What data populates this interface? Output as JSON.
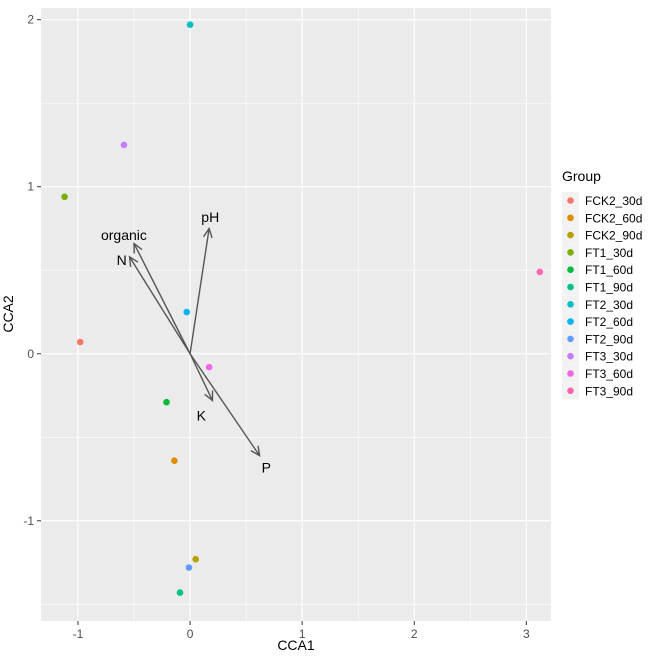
{
  "chart_data": {
    "type": "scatter",
    "title": "",
    "xlabel": "CCA1",
    "ylabel": "CCA2",
    "xlim": [
      -1.33,
      3.22
    ],
    "ylim": [
      -1.6,
      2.07
    ],
    "xticks": [
      -1,
      0,
      1,
      2,
      3
    ],
    "yticks": [
      -1,
      0,
      1,
      2
    ],
    "xtick_labels": [
      "-1",
      "0",
      "1",
      "2",
      "3"
    ],
    "ytick_labels": [
      "-1",
      "0",
      "1",
      "2"
    ],
    "grid": true,
    "legend_title": "Group",
    "legend_position": "right",
    "points": [
      {
        "group": "FCK2_30d",
        "x": -0.98,
        "y": 0.07,
        "color": "#F8766D"
      },
      {
        "group": "FCK2_60d",
        "x": -0.14,
        "y": -0.64,
        "color": "#DE8C00"
      },
      {
        "group": "FCK2_90d",
        "x": 0.05,
        "y": -1.23,
        "color": "#B79F00"
      },
      {
        "group": "FT1_30d",
        "x": -1.12,
        "y": 0.94,
        "color": "#7CAE00"
      },
      {
        "group": "FT1_60d",
        "x": -0.21,
        "y": -0.29,
        "color": "#00BA38"
      },
      {
        "group": "FT1_90d",
        "x": -0.09,
        "y": -1.43,
        "color": "#00C08B"
      },
      {
        "group": "FT2_30d",
        "x": 0.0,
        "y": 1.97,
        "color": "#00BFC4"
      },
      {
        "group": "FT2_60d",
        "x": -0.03,
        "y": 0.25,
        "color": "#00B4F0"
      },
      {
        "group": "FT2_90d",
        "x": -0.01,
        "y": -1.28,
        "color": "#619CFF"
      },
      {
        "group": "FT3_30d",
        "x": -0.59,
        "y": 1.25,
        "color": "#C77CFF"
      },
      {
        "group": "FT3_60d",
        "x": 0.17,
        "y": -0.08,
        "color": "#F564E3"
      },
      {
        "group": "FT3_90d",
        "x": 3.12,
        "y": 0.49,
        "color": "#FF64B0"
      }
    ],
    "vectors": [
      {
        "label": "pH",
        "x_end": 0.17,
        "y_end": 0.75,
        "label_x": 0.18,
        "label_y": 0.82
      },
      {
        "label": "organic",
        "x_end": -0.5,
        "y_end": 0.66,
        "label_x": -0.59,
        "label_y": 0.71
      },
      {
        "label": "N",
        "x_end": -0.54,
        "y_end": 0.58,
        "label_x": -0.61,
        "label_y": 0.56
      },
      {
        "label": "K",
        "x_end": 0.2,
        "y_end": -0.28,
        "label_x": 0.1,
        "label_y": -0.37
      },
      {
        "label": "P",
        "x_end": 0.62,
        "y_end": -0.61,
        "label_x": 0.68,
        "label_y": -0.68
      }
    ],
    "vector_origin": [
      0,
      0
    ]
  }
}
